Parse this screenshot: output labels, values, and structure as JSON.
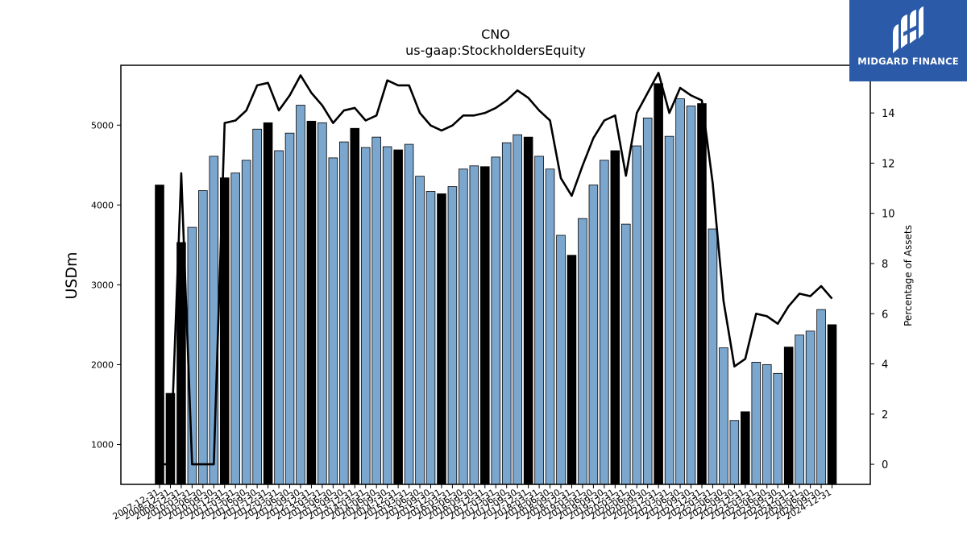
{
  "chart_data": {
    "type": "bar+line",
    "title": "CNO",
    "subtitle": "us-gaap:StockholdersEquity",
    "ylabel_left": "USDm",
    "ylabel_right": "Percentage of Assets",
    "ylim_left": [
      500,
      5750
    ],
    "ylim_right": [
      -0.8,
      15.9
    ],
    "left_ticks": [
      1000,
      2000,
      3000,
      4000,
      5000
    ],
    "right_ticks": [
      0,
      2,
      4,
      6,
      8,
      10,
      12,
      14
    ],
    "bar_color_quarterly": "#7ba7cf",
    "bar_color_annual": "#000000",
    "line_color": "#000000",
    "grid": false,
    "visible_dates": [
      "2007-12-31",
      "2008-12-31",
      "2009-12-31",
      "2010-03-31",
      "2010-06-30",
      "2010-09-30",
      "2010-12-31",
      "2011-03-31",
      "2011-06-30",
      "2011-09-30",
      "2011-12-31",
      "2012-03-31",
      "2012-06-30",
      "2012-09-30",
      "2012-12-31",
      "2013-03-31",
      "2013-06-30",
      "2013-09-30",
      "2013-12-31",
      "2014-03-31",
      "2014-06-30",
      "2014-09-30",
      "2014-12-31",
      "2015-03-31",
      "2015-06-30",
      "2015-09-30",
      "2015-12-31",
      "2016-03-31",
      "2016-06-30",
      "2016-09-30",
      "2016-12-31",
      "2017-03-31",
      "2017-06-30",
      "2017-09-30",
      "2017-12-31",
      "2018-03-31",
      "2018-06-30",
      "2018-09-30",
      "2018-12-31",
      "2019-03-31",
      "2019-06-30",
      "2019-09-30",
      "2019-12-31",
      "2020-03-31",
      "2020-06-30",
      "2020-09-30",
      "2020-12-31",
      "2021-03-31",
      "2021-06-30",
      "2021-09-30",
      "2021-12-31",
      "2022-03-31",
      "2022-06-30",
      "2022-09-30",
      "2022-12-31",
      "2023-03-31",
      "2023-06-30",
      "2023-09-30",
      "2023-12-31",
      "2024-03-31",
      "2024-06-30",
      "2024-09-30",
      "2024-12-31"
    ],
    "annual_flags": [
      true,
      true,
      true,
      false,
      false,
      false,
      true,
      false,
      false,
      false,
      true,
      false,
      false,
      false,
      true,
      false,
      false,
      false,
      true,
      false,
      false,
      false,
      true,
      false,
      false,
      false,
      true,
      false,
      false,
      false,
      true,
      false,
      false,
      false,
      true,
      false,
      false,
      false,
      true,
      false,
      false,
      false,
      true,
      false,
      false,
      false,
      true,
      false,
      false,
      false,
      true,
      false,
      false,
      false,
      true,
      false,
      false,
      false,
      true,
      false,
      false,
      false,
      true
    ],
    "equity_usdm": [
      4250,
      1640,
      3530,
      3720,
      4180,
      4610,
      4340,
      4400,
      4560,
      4950,
      5030,
      4680,
      4900,
      5250,
      5050,
      5030,
      4590,
      4790,
      4960,
      4720,
      4850,
      4730,
      4690,
      4760,
      4360,
      4170,
      4140,
      4230,
      4450,
      4490,
      4480,
      4600,
      4780,
      4880,
      4850,
      4610,
      4450,
      3620,
      3370,
      3830,
      4250,
      4560,
      4680,
      3760,
      4740,
      5090,
      5520,
      4860,
      5330,
      5240,
      5270,
      3700,
      2210,
      1300,
      1410,
      2030,
      2000,
      1890,
      2220,
      2370,
      2420,
      2690,
      2500
    ],
    "percentage_of_assets": [
      0,
      0,
      11.6,
      0,
      0,
      0,
      13.6,
      13.7,
      14.1,
      15.1,
      15.2,
      14.1,
      14.7,
      15.5,
      14.8,
      14.3,
      13.6,
      14.1,
      14.2,
      13.7,
      13.9,
      15.3,
      15.1,
      15.1,
      14.0,
      13.5,
      13.3,
      13.5,
      13.9,
      13.9,
      14.0,
      14.2,
      14.5,
      14.9,
      14.6,
      14.1,
      13.7,
      11.4,
      10.7,
      11.9,
      13.0,
      13.7,
      13.9,
      11.5,
      14.0,
      14.8,
      15.6,
      14.0,
      15.0,
      14.7,
      14.5,
      11.2,
      6.5,
      3.9,
      4.2,
      6.0,
      5.9,
      5.6,
      6.3,
      6.8,
      6.7,
      7.1,
      6.6
    ]
  },
  "logo": {
    "text": "MIDGARD FINANCE",
    "color": "#2b5aa8"
  }
}
